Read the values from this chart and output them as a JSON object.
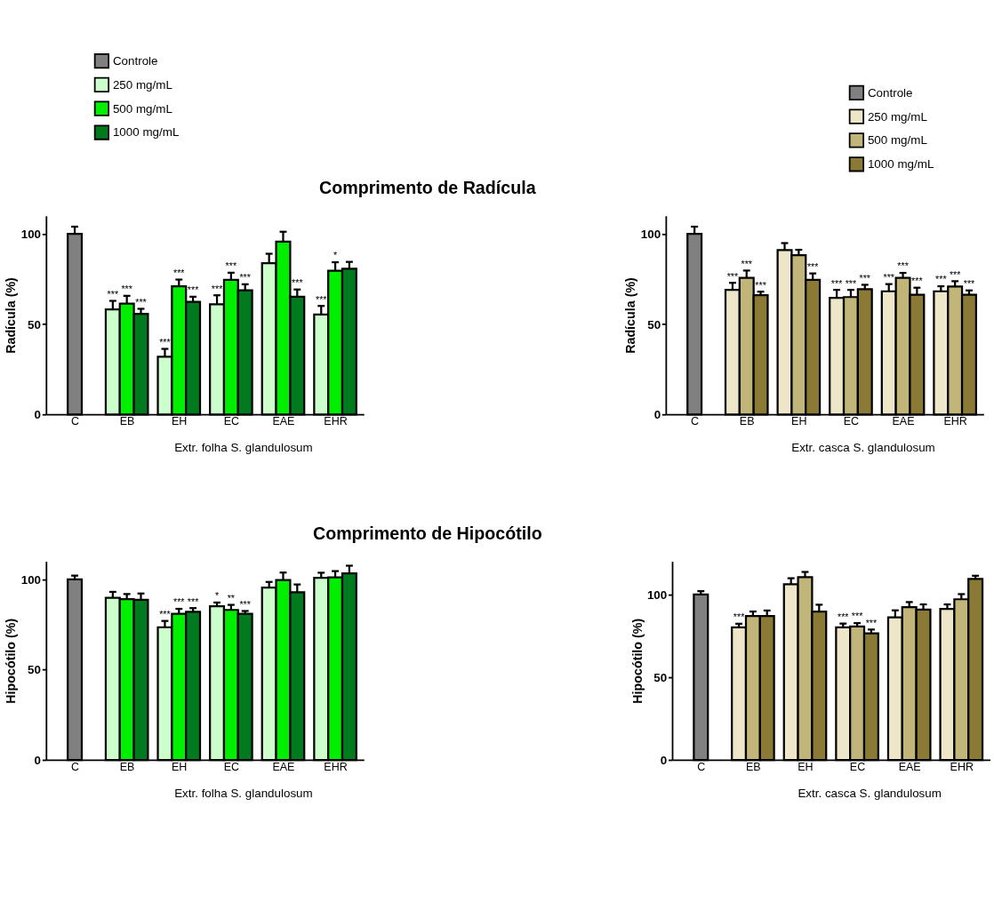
{
  "chart_data": [
    {
      "type": "bar",
      "title": "Comprimento de Radícula",
      "ylabel": "Radícula (%)",
      "xlabel": "Extr. folha S. glandulosum",
      "categories": [
        "C",
        "EB",
        "EH",
        "EC",
        "EAE",
        "EHR"
      ],
      "ylim": [
        0,
        110
      ],
      "yticks": [
        0,
        50,
        100
      ],
      "grid": false,
      "legend": "top left",
      "series": [
        {
          "name": "Controle",
          "color": "#808080",
          "values": [
            100,
            null,
            null,
            null,
            null,
            null
          ],
          "errors": [
            [
              100,
              104
            ],
            null,
            null,
            null,
            null,
            null
          ]
        },
        {
          "name": "250  mg/mL",
          "color": "#ccffcc",
          "values": [
            null,
            58.2,
            32,
            61,
            83.8,
            55.3
          ],
          "errors": [
            null,
            [
              58.2,
              62.9
            ],
            [
              32,
              36.3
            ],
            [
              61,
              66
            ],
            [
              83.8,
              89
            ],
            [
              55.3,
              60.1
            ]
          ],
          "value_labels": [
            null,
            "***",
            "***",
            "***",
            null,
            "***"
          ]
        },
        {
          "name": "500  mg/mL",
          "color": "#00ee00",
          "values": [
            null,
            61.4,
            71,
            74.5,
            95.7,
            79.6
          ],
          "errors": [
            null,
            [
              61.4,
              65.7
            ],
            [
              71,
              74.7
            ],
            [
              74.5,
              78.5
            ],
            [
              95.7,
              101.2
            ],
            [
              79.6,
              84.3
            ]
          ],
          "value_labels": [
            null,
            "***",
            "***",
            "***",
            null,
            "*"
          ]
        },
        {
          "name": "1000  mg/mL",
          "color": "#007a1e",
          "values": [
            null,
            55.7,
            62.4,
            68.8,
            65.2,
            80.7
          ],
          "errors": [
            null,
            [
              55.7,
              58.5
            ],
            [
              62.4,
              65.2
            ],
            [
              68.8,
              72.1
            ],
            [
              65.2,
              69.2
            ],
            [
              80.7,
              84.5
            ]
          ],
          "value_labels": [
            null,
            "***",
            "***",
            "***",
            "***",
            null
          ]
        }
      ]
    },
    {
      "type": "bar",
      "ylabel": "Radícula (%)",
      "xlabel": "Extr. casca S. glandulosum",
      "categories": [
        "C",
        "EB",
        "EH",
        "EC",
        "EAE",
        "EHR"
      ],
      "ylim": [
        0,
        110
      ],
      "yticks": [
        0,
        50,
        100
      ],
      "grid": false,
      "legend": "top right",
      "series": [
        {
          "name": "Controle",
          "color": "#808080",
          "values": [
            100,
            null,
            null,
            null,
            null,
            null
          ],
          "errors": [
            [
              100,
              104
            ],
            null,
            null,
            null,
            null,
            null
          ]
        },
        {
          "name": "250  mg/mL",
          "color": "#ede6c8",
          "values": [
            null,
            69,
            91,
            64.6,
            68.2,
            68.2
          ],
          "errors": [
            null,
            [
              69,
              72.9
            ],
            [
              91,
              94.9
            ],
            [
              64.6,
              69
            ],
            [
              68.2,
              72.2
            ],
            [
              68.2,
              71
            ]
          ],
          "value_labels": [
            null,
            "***",
            null,
            "***",
            "***",
            "***"
          ]
        },
        {
          "name": "500  mg/mL",
          "color": "#c2b57a",
          "values": [
            null,
            75.7,
            88.2,
            65,
            75.7,
            70.8
          ],
          "errors": [
            null,
            [
              75.7,
              79.7
            ],
            [
              88.2,
              91.2
            ],
            [
              65,
              69
            ],
            [
              75.7,
              78.4
            ],
            [
              70.8,
              73.8
            ]
          ],
          "value_labels": [
            null,
            "***",
            null,
            "***",
            "***",
            "***"
          ]
        },
        {
          "name": "1000  mg/mL",
          "color": "#8a7a35",
          "values": [
            null,
            66,
            74.5,
            69.4,
            66.3,
            66.3
          ],
          "errors": [
            null,
            [
              66,
              68
            ],
            [
              74.5,
              78.1
            ],
            [
              69.4,
              71.8
            ],
            [
              66.3,
              70.2
            ],
            [
              66.3,
              68.7
            ]
          ],
          "value_labels": [
            null,
            "***",
            "***",
            "***",
            "***",
            "***"
          ]
        }
      ]
    },
    {
      "type": "bar",
      "title": "Comprimento de Hipocótilo",
      "ylabel": "Hipocótilo (%)",
      "xlabel": "Extr. folha S. glandulosum",
      "categories": [
        "C",
        "EB",
        "EH",
        "EC",
        "EAE",
        "EHR"
      ],
      "ylim": [
        0,
        110
      ],
      "yticks": [
        0,
        50,
        100
      ],
      "grid": false,
      "series": [
        {
          "color": "#808080",
          "values": [
            100,
            null,
            null,
            null,
            null,
            null
          ],
          "errors": [
            [
              100,
              102.1
            ],
            null,
            null,
            null,
            null,
            null
          ]
        },
        {
          "color": "#ccffcc",
          "values": [
            null,
            89.8,
            73.5,
            85.1,
            95.5,
            100.9
          ],
          "errors": [
            null,
            [
              89.8,
              93.1
            ],
            [
              73.5,
              77
            ],
            [
              85.1,
              87.2
            ],
            [
              95.5,
              98.6
            ],
            [
              100.9,
              103.7
            ]
          ],
          "value_labels": [
            null,
            null,
            "***",
            "*",
            null,
            null
          ]
        },
        {
          "color": "#00ee00",
          "values": [
            null,
            89.1,
            80.9,
            83.1,
            99.7,
            101.1
          ],
          "errors": [
            null,
            [
              89.1,
              91.9
            ],
            [
              80.9,
              83.7
            ],
            [
              83.1,
              85.9
            ],
            [
              99.7,
              103.8
            ],
            [
              101.1,
              104.6
            ]
          ],
          "value_labels": [
            null,
            null,
            "***",
            "**",
            null,
            null
          ]
        },
        {
          "color": "#007a1e",
          "values": [
            null,
            88.7,
            82,
            80.9,
            92.9,
            103.3
          ],
          "errors": [
            null,
            [
              88.7,
              92.2
            ],
            [
              82,
              84.1
            ],
            [
              80.9,
              82.5
            ],
            [
              92.9,
              97.2
            ],
            [
              103.3,
              107.6
            ]
          ],
          "value_labels": [
            null,
            null,
            "***",
            "***",
            null,
            null
          ]
        }
      ]
    },
    {
      "type": "bar",
      "ylabel": "Hipocótilo (%)",
      "xlabel": "Extr. casca S. glandulosum",
      "categories": [
        "C",
        "EB",
        "EH",
        "EC",
        "EAE",
        "EHR"
      ],
      "ylim": [
        0,
        120
      ],
      "yticks": [
        0,
        50,
        100
      ],
      "grid": false,
      "series": [
        {
          "color": "#808080",
          "values": [
            100,
            null,
            null,
            null,
            null,
            null
          ],
          "errors": [
            [
              100,
              102
            ],
            null,
            null,
            null,
            null,
            null
          ]
        },
        {
          "color": "#ede6c8",
          "values": [
            null,
            80.1,
            106.2,
            80.1,
            86.2,
            91.2
          ],
          "errors": [
            null,
            [
              80.1,
              82.3
            ],
            [
              106.2,
              109.8
            ],
            [
              80.1,
              82.4
            ],
            [
              86.2,
              90.4
            ],
            [
              91.2,
              94
            ]
          ],
          "value_labels": [
            null,
            "***",
            null,
            "***",
            null,
            null
          ]
        },
        {
          "color": "#c2b57a",
          "values": [
            null,
            86.9,
            110.5,
            80.7,
            92.3,
            97.1
          ],
          "errors": [
            null,
            [
              86.9,
              89.7
            ],
            [
              110.5,
              113.6
            ],
            [
              80.7,
              82.7
            ],
            [
              92.3,
              95.4
            ],
            [
              97.1,
              100.2
            ]
          ],
          "value_labels": [
            null,
            null,
            null,
            "***",
            null,
            null
          ]
        },
        {
          "color": "#8a7a35",
          "values": [
            null,
            86.9,
            89.6,
            76.5,
            90.9,
            109.4
          ],
          "errors": [
            null,
            [
              86.9,
              90.3
            ],
            [
              89.6,
              93.8
            ],
            [
              76.5,
              78.8
            ],
            [
              90.9,
              94
            ],
            [
              109.4,
              111.3
            ]
          ],
          "value_labels": [
            null,
            null,
            null,
            "***",
            null,
            null
          ]
        }
      ]
    }
  ]
}
